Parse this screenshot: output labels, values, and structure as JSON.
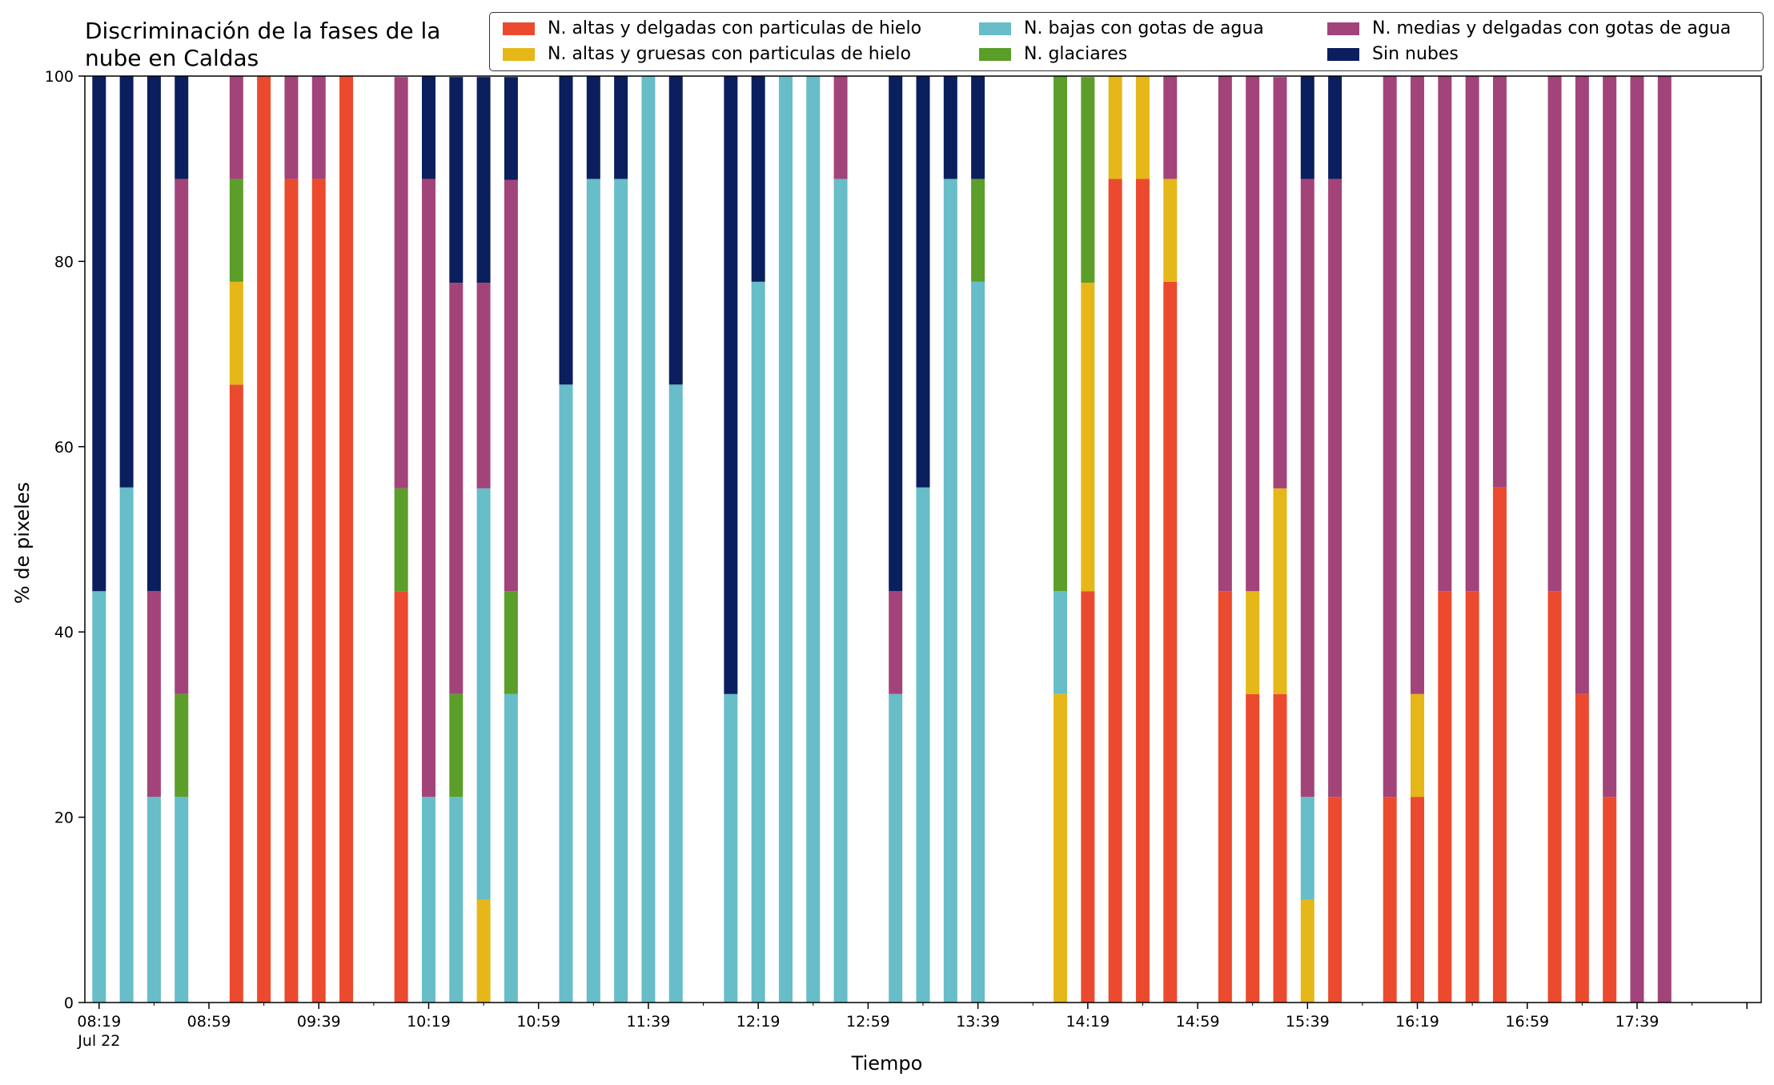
{
  "chart_data": {
    "type": "bar",
    "stacked": true,
    "title": "Discriminación de la fases de la nube en Caldas",
    "xlabel": "Tiempo",
    "ylabel": "% de pixeles",
    "ylim": [
      0,
      100
    ],
    "yticks": [
      0,
      20,
      40,
      60,
      80,
      100
    ],
    "xlim": [
      "08:19",
      "18:19"
    ],
    "xticks_major": [
      {
        "time": "08:19",
        "label": "08:19",
        "sublabel": "Jul 22"
      },
      {
        "time": "08:59",
        "label": "08:59"
      },
      {
        "time": "09:39",
        "label": "09:39"
      },
      {
        "time": "10:19",
        "label": "10:19"
      },
      {
        "time": "10:59",
        "label": "10:59"
      },
      {
        "time": "11:39",
        "label": "11:39"
      },
      {
        "time": "12:19",
        "label": "12:19"
      },
      {
        "time": "12:59",
        "label": "12:59"
      },
      {
        "time": "13:39",
        "label": "13:39"
      },
      {
        "time": "14:19",
        "label": "14:19"
      },
      {
        "time": "14:59",
        "label": "14:59"
      },
      {
        "time": "15:39",
        "label": "15:39"
      },
      {
        "time": "16:19",
        "label": "16:19"
      },
      {
        "time": "16:59",
        "label": "16:59"
      },
      {
        "time": "17:39",
        "label": "17:39"
      }
    ],
    "grid": false,
    "legend_position": "top-right",
    "legend_columns": 3,
    "series": [
      {
        "name": "N. altas y delgadas con particulas de hielo",
        "color": "#EC4A2E"
      },
      {
        "name": "N. altas y gruesas con particulas de hielo",
        "color": "#E5B718"
      },
      {
        "name": "N. bajas con gotas de agua",
        "color": "#67BDC8"
      },
      {
        "name": "N. glaciares",
        "color": "#5B9E2A"
      },
      {
        "name": "N. medias y delgadas con gotas de agua",
        "color": "#A2447A"
      },
      {
        "name": "Sin nubes",
        "color": "#0B1F5E"
      }
    ],
    "bar_order": [
      "N. altas y delgadas con particulas de hielo",
      "N. altas y gruesas con particulas de hielo",
      "N. bajas con gotas de agua",
      "N. glaciares",
      "N. medias y delgadas con gotas de agua",
      "Sin nubes"
    ],
    "bars": [
      {
        "time": "08:19",
        "values": [
          0,
          0,
          44.4,
          0,
          0,
          55.6
        ]
      },
      {
        "time": "08:29",
        "values": [
          0,
          0,
          55.6,
          0,
          0,
          44.4
        ]
      },
      {
        "time": "08:39",
        "values": [
          0,
          0,
          22.2,
          0,
          22.2,
          55.6
        ]
      },
      {
        "time": "08:49",
        "values": [
          0,
          0,
          22.2,
          11.1,
          55.6,
          11.1
        ]
      },
      {
        "time": "09:09",
        "values": [
          66.7,
          11.1,
          0,
          11.1,
          11.1,
          0
        ]
      },
      {
        "time": "09:19",
        "values": [
          100,
          0,
          0,
          0,
          0,
          0
        ]
      },
      {
        "time": "09:29",
        "values": [
          88.9,
          0,
          0,
          0,
          11.1,
          0
        ]
      },
      {
        "time": "09:39",
        "values": [
          88.9,
          0,
          0,
          0,
          11.1,
          0
        ]
      },
      {
        "time": "09:49",
        "values": [
          100,
          0,
          0,
          0,
          0,
          0
        ]
      },
      {
        "time": "10:09",
        "values": [
          44.4,
          0,
          0,
          11.1,
          44.4,
          0
        ]
      },
      {
        "time": "10:19",
        "values": [
          0,
          0,
          22.2,
          0,
          66.7,
          11.1
        ]
      },
      {
        "time": "10:29",
        "values": [
          0,
          0,
          22.2,
          11.1,
          44.4,
          22.2
        ]
      },
      {
        "time": "10:39",
        "values": [
          0,
          11.1,
          44.4,
          0,
          22.2,
          22.2
        ]
      },
      {
        "time": "10:49",
        "values": [
          0,
          0,
          33.3,
          11.1,
          44.4,
          11.1
        ]
      },
      {
        "time": "11:09",
        "values": [
          0,
          0,
          66.7,
          0,
          0,
          33.3
        ]
      },
      {
        "time": "11:19",
        "values": [
          0,
          0,
          88.9,
          0,
          0,
          11.1
        ]
      },
      {
        "time": "11:29",
        "values": [
          0,
          0,
          88.9,
          0,
          0,
          11.1
        ]
      },
      {
        "time": "11:39",
        "values": [
          0,
          0,
          100,
          0,
          0,
          0
        ]
      },
      {
        "time": "11:49",
        "values": [
          0,
          0,
          66.7,
          0,
          0,
          33.3
        ]
      },
      {
        "time": "12:09",
        "values": [
          0,
          0,
          33.3,
          0,
          0,
          66.7
        ]
      },
      {
        "time": "12:19",
        "values": [
          0,
          0,
          77.8,
          0,
          0,
          22.2
        ]
      },
      {
        "time": "12:29",
        "values": [
          0,
          0,
          100,
          0,
          0,
          0
        ]
      },
      {
        "time": "12:39",
        "values": [
          0,
          0,
          100,
          0,
          0,
          0
        ]
      },
      {
        "time": "12:49",
        "values": [
          0,
          0,
          88.9,
          0,
          11.1,
          0
        ]
      },
      {
        "time": "13:09",
        "values": [
          0,
          0,
          33.3,
          0,
          11.1,
          55.6
        ]
      },
      {
        "time": "13:19",
        "values": [
          0,
          0,
          55.6,
          0,
          0,
          44.4
        ]
      },
      {
        "time": "13:29",
        "values": [
          0,
          0,
          88.9,
          0,
          0,
          11.1
        ]
      },
      {
        "time": "13:39",
        "values": [
          0,
          0,
          77.8,
          11.1,
          0,
          11.1
        ]
      },
      {
        "time": "14:09",
        "values": [
          0,
          33.3,
          11.1,
          55.6,
          0,
          0
        ]
      },
      {
        "time": "14:19",
        "values": [
          44.4,
          33.3,
          0,
          22.2,
          0,
          0
        ]
      },
      {
        "time": "14:29",
        "values": [
          88.9,
          11.1,
          0,
          0,
          0,
          0
        ]
      },
      {
        "time": "14:39",
        "values": [
          88.9,
          11.1,
          0,
          0,
          0,
          0
        ]
      },
      {
        "time": "14:49",
        "values": [
          77.8,
          11.1,
          0,
          0,
          11.1,
          0
        ]
      },
      {
        "time": "15:09",
        "values": [
          44.4,
          0,
          0,
          0,
          55.6,
          0
        ]
      },
      {
        "time": "15:19",
        "values": [
          33.3,
          11.1,
          0,
          0,
          55.6,
          0
        ]
      },
      {
        "time": "15:29",
        "values": [
          33.3,
          22.2,
          0,
          0,
          44.4,
          0
        ]
      },
      {
        "time": "15:39",
        "values": [
          0,
          11.1,
          11.1,
          0,
          66.7,
          11.1
        ]
      },
      {
        "time": "15:49",
        "values": [
          22.2,
          0,
          0,
          0,
          66.7,
          11.1
        ]
      },
      {
        "time": "16:09",
        "values": [
          22.2,
          0,
          0,
          0,
          77.8,
          0
        ]
      },
      {
        "time": "16:19",
        "values": [
          22.2,
          11.1,
          0,
          0,
          66.7,
          0
        ]
      },
      {
        "time": "16:29",
        "values": [
          44.4,
          0,
          0,
          0,
          55.6,
          0
        ]
      },
      {
        "time": "16:39",
        "values": [
          44.4,
          0,
          0,
          0,
          55.6,
          0
        ]
      },
      {
        "time": "16:49",
        "values": [
          55.6,
          0,
          0,
          0,
          44.4,
          0
        ]
      },
      {
        "time": "17:09",
        "values": [
          44.4,
          0,
          0,
          0,
          55.6,
          0
        ]
      },
      {
        "time": "17:19",
        "values": [
          33.3,
          0,
          0,
          0,
          66.7,
          0
        ]
      },
      {
        "time": "17:29",
        "values": [
          22.2,
          0,
          0,
          0,
          77.8,
          0
        ]
      },
      {
        "time": "17:39",
        "values": [
          0,
          0,
          0,
          0,
          100,
          0
        ]
      },
      {
        "time": "17:49",
        "values": [
          0,
          0,
          0,
          0,
          100,
          0
        ]
      }
    ]
  }
}
